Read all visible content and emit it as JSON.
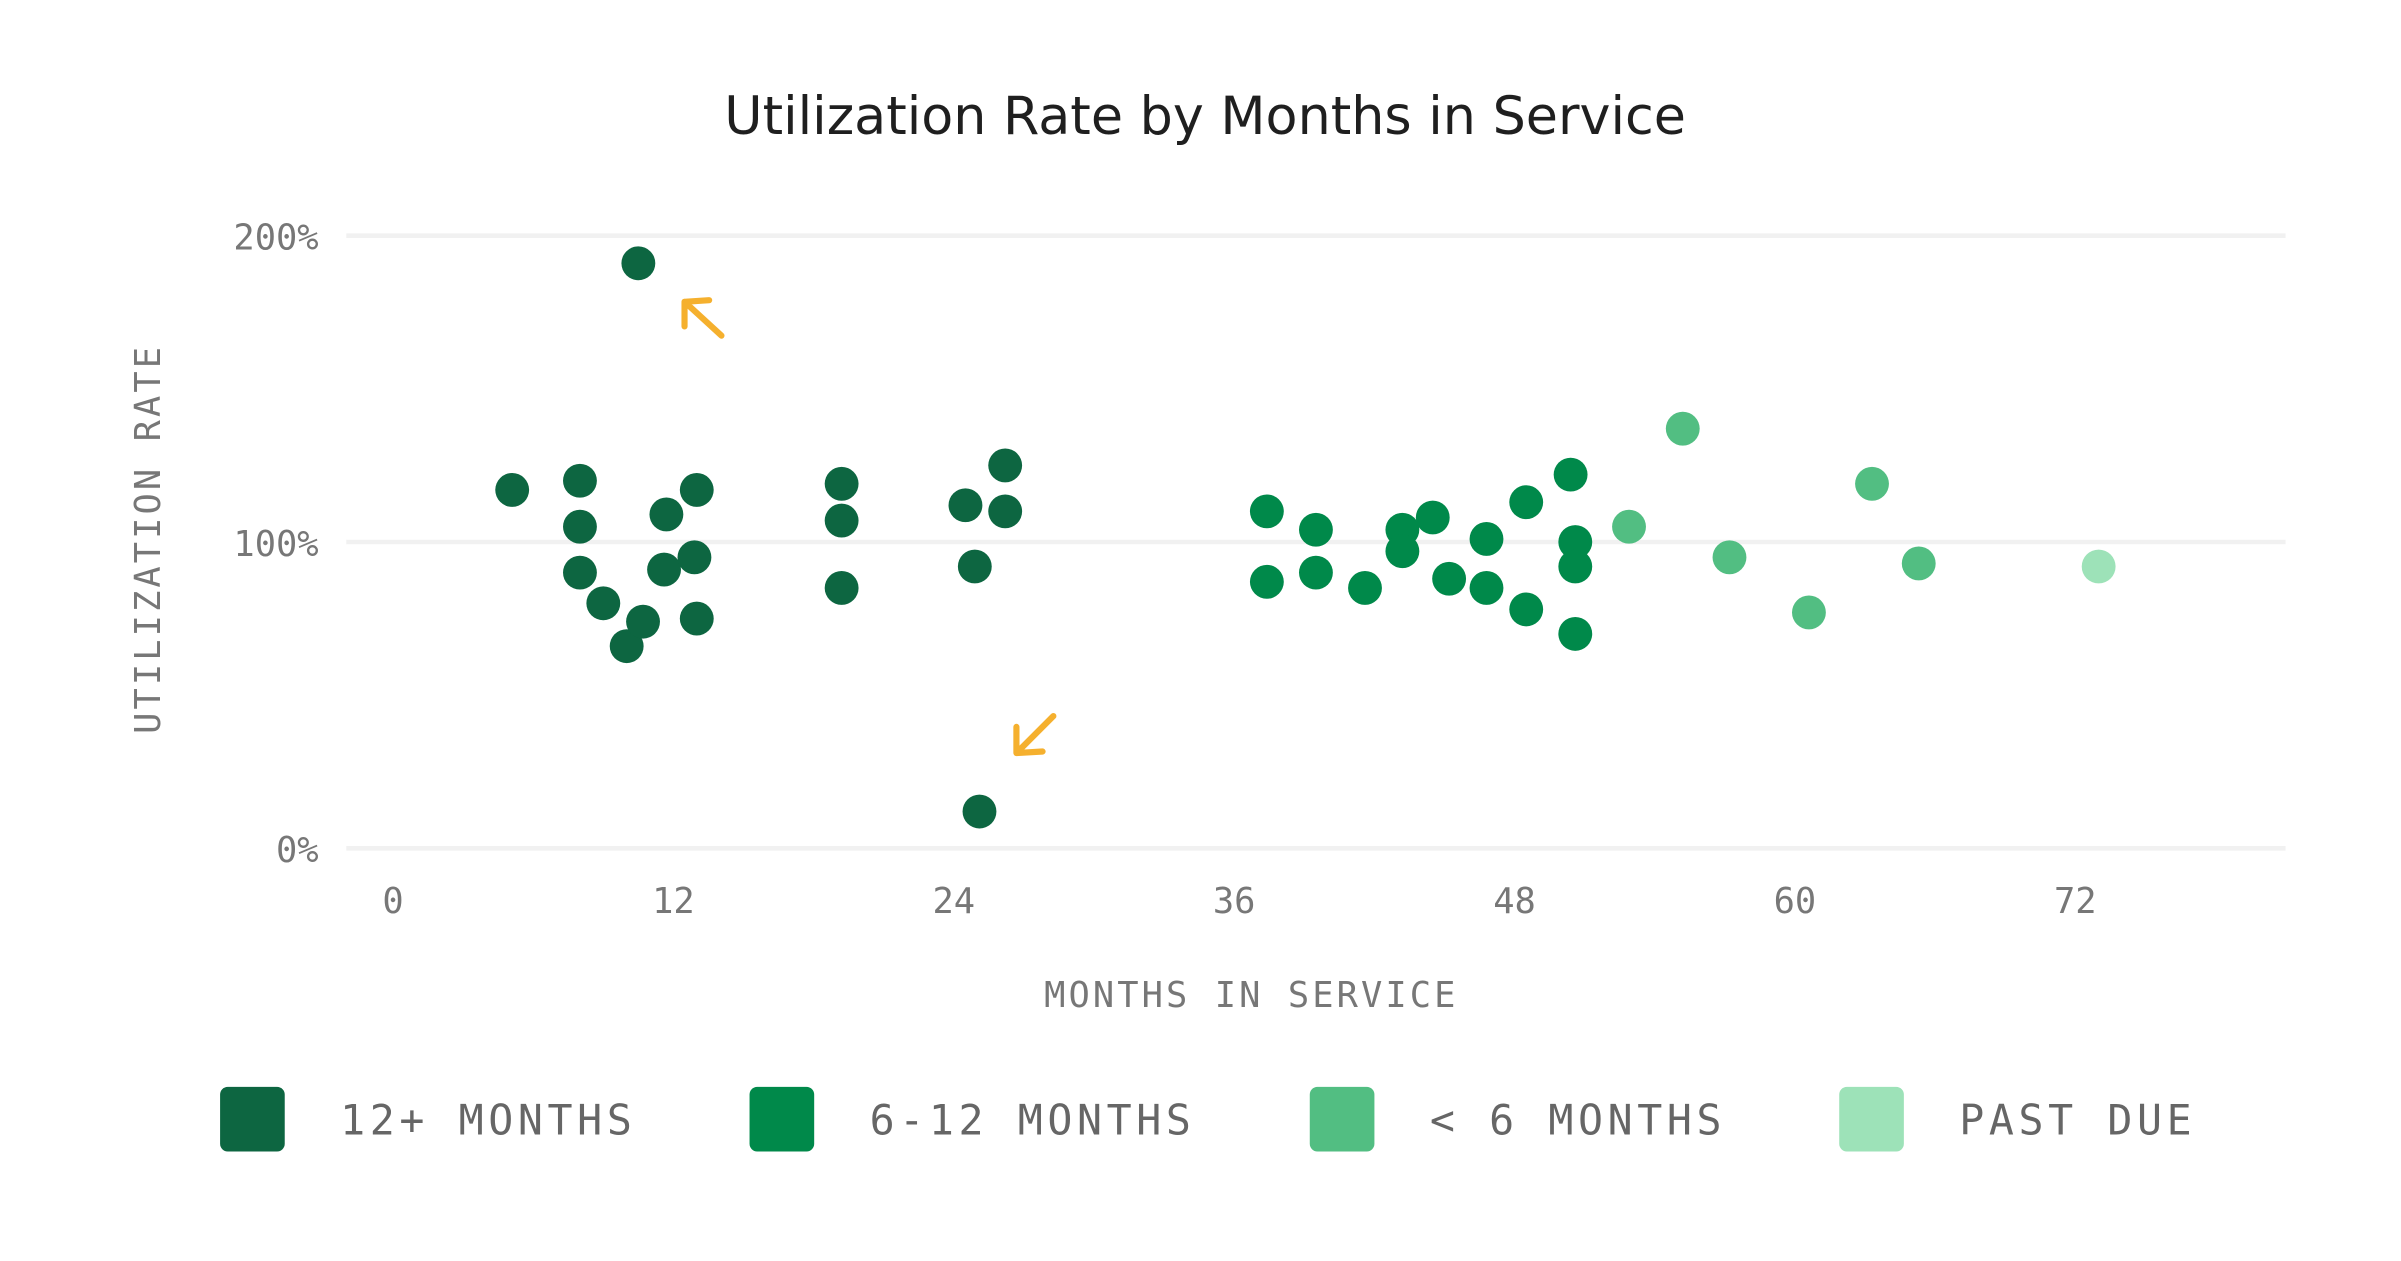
{
  "chart_data": {
    "type": "scatter",
    "title": "Utilization Rate by Months in Service",
    "xlabel": "MONTHS IN SERVICE",
    "ylabel": "UTILIZATION RATE",
    "xlim": [
      -2,
      81
    ],
    "ylim": [
      0,
      200
    ],
    "xticks": [
      0,
      12,
      24,
      36,
      48,
      60,
      72
    ],
    "xtick_labels": [
      "0",
      "12",
      "24",
      "36",
      "48",
      "60",
      "72"
    ],
    "yticks": [
      0,
      100,
      200
    ],
    "ytick_labels": [
      "0%",
      "100%",
      "200%"
    ],
    "grid": "horizontal",
    "legend_position": "bottom",
    "series": [
      {
        "name": "12+ MONTHS",
        "color": "#0d6641",
        "points": [
          [
            10.5,
            191
          ],
          [
            5.1,
            117
          ],
          [
            8.0,
            120
          ],
          [
            8.0,
            105
          ],
          [
            8.0,
            90
          ],
          [
            9.0,
            80
          ],
          [
            10.0,
            66
          ],
          [
            10.7,
            74
          ],
          [
            11.7,
            109
          ],
          [
            11.6,
            91
          ],
          [
            12.9,
            95
          ],
          [
            13.0,
            117
          ],
          [
            13.0,
            75
          ],
          [
            19.2,
            119
          ],
          [
            19.2,
            107
          ],
          [
            19.2,
            85
          ],
          [
            24.5,
            112
          ],
          [
            26.2,
            125
          ],
          [
            26.2,
            110
          ],
          [
            24.9,
            92
          ],
          [
            25.1,
            12
          ]
        ]
      },
      {
        "name": "6-12 MONTHS",
        "color": "#00894a",
        "points": [
          [
            37.4,
            110
          ],
          [
            37.4,
            87
          ],
          [
            39.5,
            104
          ],
          [
            39.5,
            90
          ],
          [
            41.6,
            85
          ],
          [
            43.2,
            104
          ],
          [
            43.2,
            97
          ],
          [
            44.5,
            108
          ],
          [
            45.2,
            88
          ],
          [
            46.8,
            101
          ],
          [
            46.8,
            85
          ],
          [
            48.5,
            113
          ],
          [
            48.5,
            78
          ],
          [
            50.4,
            122
          ],
          [
            50.6,
            100
          ],
          [
            50.6,
            92
          ],
          [
            50.6,
            70
          ]
        ]
      },
      {
        "name": "< 6 MONTHS",
        "color": "#52be82",
        "points": [
          [
            52.9,
            105
          ],
          [
            55.2,
            137
          ],
          [
            57.2,
            95
          ],
          [
            60.6,
            77
          ],
          [
            63.3,
            119
          ],
          [
            65.3,
            93
          ]
        ]
      },
      {
        "name": "PAST DUE",
        "color": "#9de2b8",
        "points": [
          [
            73.0,
            92
          ]
        ]
      }
    ],
    "annotations": [
      {
        "type": "arrow",
        "color": "#f5b02e",
        "points_to": [
          10.5,
          191
        ]
      },
      {
        "type": "arrow",
        "color": "#f5b02e",
        "points_to": [
          25.1,
          12
        ]
      }
    ]
  }
}
